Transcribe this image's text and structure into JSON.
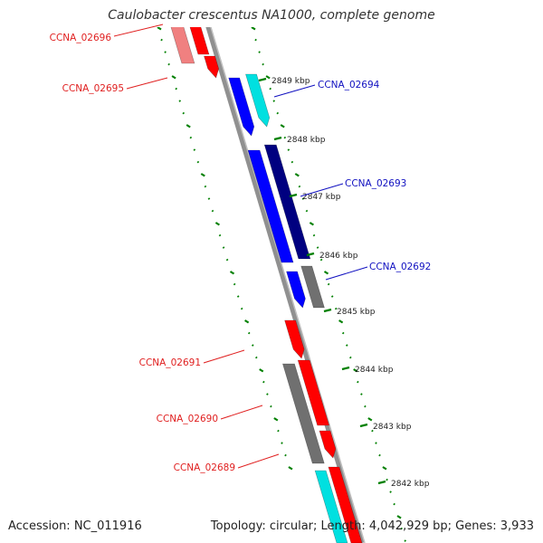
{
  "title": "Caulobacter crescentus NA1000, complete genome",
  "footer": {
    "accession": "Accession: NC_011916",
    "stats": "Topology: circular; Length: 4,042,929 bp; Genes: 3,933"
  },
  "genes": [
    {
      "id": "CCNA_02696",
      "color": "#e02020"
    },
    {
      "id": "CCNA_02695",
      "color": "#e02020"
    },
    {
      "id": "CCNA_02694",
      "color": "#1010c0"
    },
    {
      "id": "CCNA_02693",
      "color": "#1010c0"
    },
    {
      "id": "CCNA_02692",
      "color": "#1010c0"
    },
    {
      "id": "CCNA_02691",
      "color": "#e02020"
    },
    {
      "id": "CCNA_02690",
      "color": "#e02020"
    },
    {
      "id": "CCNA_02689",
      "color": "#e02020"
    }
  ],
  "kbp_ticks": [
    {
      "label": "2849 kbp"
    },
    {
      "label": "2848 kbp"
    },
    {
      "label": "2847 kbp"
    },
    {
      "label": "2846 kbp"
    },
    {
      "label": "2845 kbp"
    },
    {
      "label": "2844 kbp"
    },
    {
      "label": "2843 kbp"
    },
    {
      "label": "2842 kbp"
    }
  ],
  "colors": {
    "forward_strand": "#ff0000",
    "forward_strand_light": "#f08080",
    "reverse_strand": "#0000ff",
    "reverse_strand_dark": "#000080",
    "cyan_feature": "#00e0e0",
    "gray_feature": "#707070",
    "backbone": "#808080",
    "gc_ticks": "#008000"
  }
}
